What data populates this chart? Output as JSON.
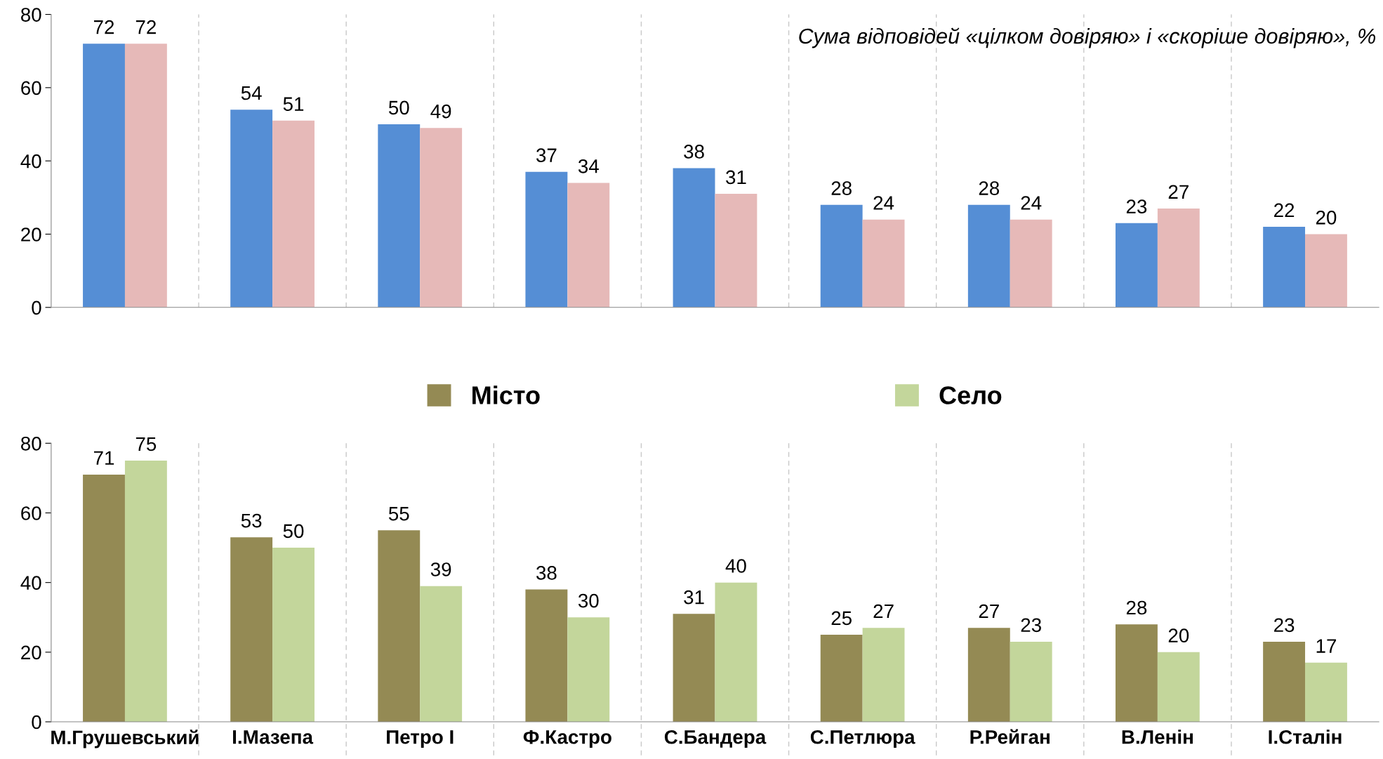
{
  "chart_data": [
    {
      "type": "bar",
      "categories": [
        null,
        null,
        null,
        null,
        null,
        null,
        null,
        null,
        null
      ],
      "annotations": [
        "Сума відповідей «цілком довіряю» і «скоріше довіряю», %"
      ],
      "series": [
        {
          "color": "#558ed5",
          "values": [
            72,
            54,
            50,
            37,
            38,
            28,
            28,
            23,
            22
          ]
        },
        {
          "color": "#e6b9b8",
          "values": [
            72,
            51,
            49,
            34,
            31,
            24,
            24,
            27,
            20
          ]
        }
      ],
      "ylim": [
        0,
        80
      ],
      "yticks": [
        0,
        20,
        40,
        60,
        80
      ],
      "data_labels": true,
      "grid": "x",
      "legend": false,
      "tick_labels": "y"
    },
    {
      "type": "bar",
      "categories": [
        "М.Грушевський",
        "І.Мазепа",
        "Петро І",
        "Ф.Кастро",
        "С.Бандера",
        "С.Петлюра",
        "Р.Рейган",
        "В.Ленін",
        "І.Сталін"
      ],
      "series": [
        {
          "name": "Місто",
          "color": "#948a54",
          "values": [
            71,
            53,
            55,
            38,
            31,
            25,
            27,
            28,
            23
          ]
        },
        {
          "name": "Село",
          "color": "#c3d69b",
          "values": [
            75,
            50,
            39,
            30,
            40,
            27,
            23,
            20,
            17
          ]
        }
      ],
      "ylim": [
        0,
        80
      ],
      "yticks": [
        0,
        20,
        40,
        60,
        80
      ],
      "data_labels": true,
      "grid": "x",
      "legend": "top"
    }
  ]
}
